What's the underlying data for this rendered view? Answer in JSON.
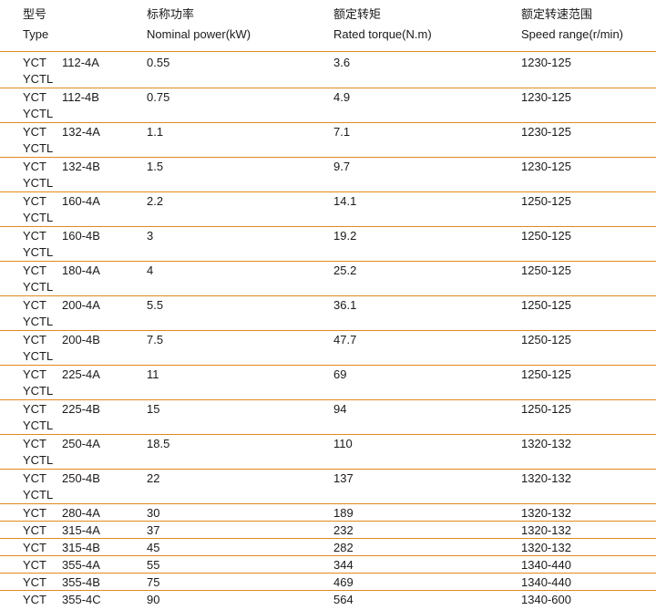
{
  "headers": {
    "type_cn": "型号",
    "type_en": "Type",
    "power_cn": "标称功率",
    "power_en": "Nominal  power(kW)",
    "torque_cn": "额定转矩",
    "torque_en": "Rated torque(N.m)",
    "speed_cn": "额定转速范围",
    "speed_en": "Speed range(r/min)"
  },
  "rows": [
    {
      "series": "YCT",
      "series2": "YCTL",
      "model": "112-4A",
      "power": "0.55",
      "torque": "3.6",
      "speed": "1230-125"
    },
    {
      "series": "YCT",
      "series2": "YCTL",
      "model": "112-4B",
      "power": "0.75",
      "torque": "4.9",
      "speed": "1230-125"
    },
    {
      "series": "YCT",
      "series2": "YCTL",
      "model": "132-4A",
      "power": "1.1",
      "torque": "7.1",
      "speed": "1230-125"
    },
    {
      "series": "YCT",
      "series2": "YCTL",
      "model": "132-4B",
      "power": "1.5",
      "torque": "9.7",
      "speed": "1230-125"
    },
    {
      "series": "YCT",
      "series2": "YCTL",
      "model": "160-4A",
      "power": "2.2",
      "torque": "14.1",
      "speed": "1250-125"
    },
    {
      "series": "YCT",
      "series2": "YCTL",
      "model": "160-4B",
      "power": "3",
      "torque": "19.2",
      "speed": "1250-125"
    },
    {
      "series": "YCT",
      "series2": "YCTL",
      "model": "180-4A",
      "power": "4",
      "torque": "25.2",
      "speed": "1250-125"
    },
    {
      "series": "YCT",
      "series2": "YCTL",
      "model": "200-4A",
      "power": "5.5",
      "torque": "36.1",
      "speed": "1250-125"
    },
    {
      "series": "YCT",
      "series2": "YCTL",
      "model": "200-4B",
      "power": "7.5",
      "torque": "47.7",
      "speed": "1250-125"
    },
    {
      "series": "YCT",
      "series2": "YCTL",
      "model": "225-4A",
      "power": "11",
      "torque": "69",
      "speed": "1250-125"
    },
    {
      "series": "YCT",
      "series2": "YCTL",
      "model": "225-4B",
      "power": "15",
      "torque": "94",
      "speed": "1250-125"
    },
    {
      "series": "YCT",
      "series2": "YCTL",
      "model": "250-4A",
      "power": "18.5",
      "torque": "110",
      "speed": "1320-132"
    },
    {
      "series": "YCT",
      "series2": "YCTL",
      "model": "250-4B",
      "power": "22",
      "torque": "137",
      "speed": "1320-132"
    },
    {
      "series": "YCT",
      "series2": "",
      "model": "280-4A",
      "power": "30",
      "torque": "189",
      "speed": "1320-132"
    },
    {
      "series": "YCT",
      "series2": "",
      "model": "315-4A",
      "power": "37",
      "torque": "232",
      "speed": "1320-132"
    },
    {
      "series": "YCT",
      "series2": "",
      "model": "315-4B",
      "power": "45",
      "torque": "282",
      "speed": "1320-132"
    },
    {
      "series": "YCT",
      "series2": "",
      "model": "355-4A",
      "power": "55",
      "torque": "344",
      "speed": "1340-440"
    },
    {
      "series": "YCT",
      "series2": "",
      "model": "355-4B",
      "power": "75",
      "torque": "469",
      "speed": "1340-440"
    },
    {
      "series": "YCT",
      "series2": "",
      "model": "355-4C",
      "power": "90",
      "torque": "564",
      "speed": "1340-600"
    }
  ],
  "colors": {
    "rule": "#e08a1e",
    "text": "#1a1a1a",
    "background": "#ffffff"
  }
}
